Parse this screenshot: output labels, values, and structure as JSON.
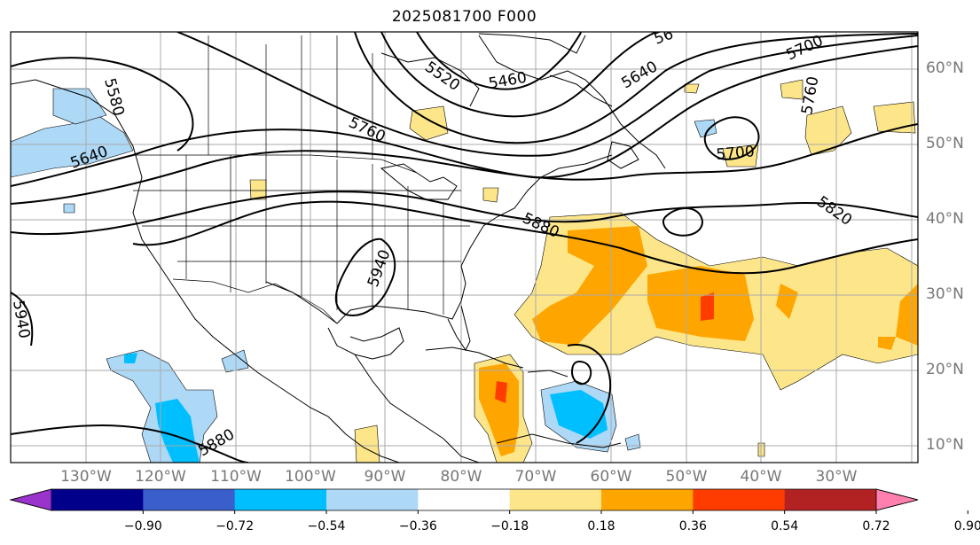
{
  "title": "2025081700 F000",
  "lat_labels": [
    "60°N",
    "50°N",
    "40°N",
    "30°N",
    "20°N",
    "10°N"
  ],
  "lon_labels": [
    "130°W",
    "120°W",
    "110°W",
    "100°W",
    "90°W",
    "80°W",
    "70°W",
    "60°W",
    "50°W",
    "40°W",
    "30°W"
  ],
  "contour_labels": [
    "5580",
    "5640",
    "5520",
    "5460",
    "5640",
    "5700",
    "5760",
    "5760",
    "5700",
    "5820",
    "5880",
    "5940",
    "5940",
    "5880",
    "56"
  ],
  "colorbar": {
    "ticks": [
      "−0.90",
      "−0.72",
      "−0.54",
      "−0.36",
      "−0.18",
      "0.18",
      "0.36",
      "0.54",
      "0.72",
      "0.90"
    ],
    "colors": [
      "#9933cc",
      "#00008b",
      "#3a5fcd",
      "#00bfff",
      "#add8f6",
      "#ffffff",
      "#fde68a",
      "#ffa500",
      "#ff3c00",
      "#b22222",
      "#ff7fae"
    ]
  },
  "fill_colors": {
    "light_yellow": "#fde68a",
    "orange": "#ffa500",
    "red_orange": "#ff3c00",
    "light_blue": "#add8f6",
    "blue": "#00bfff"
  }
}
